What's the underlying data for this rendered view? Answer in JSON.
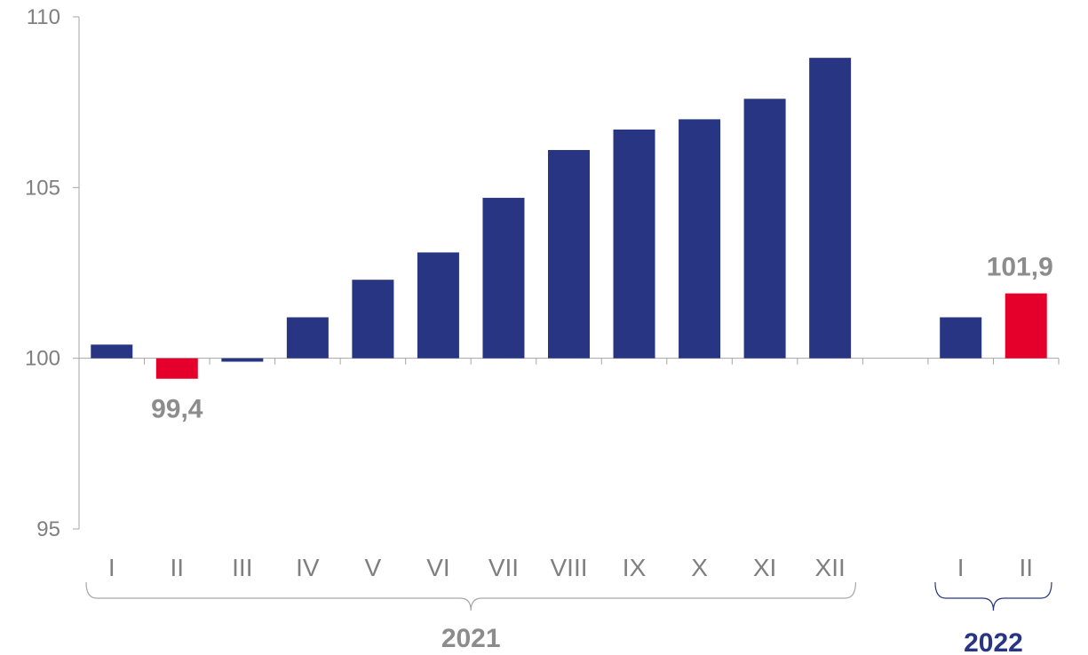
{
  "chart_data": {
    "type": "bar",
    "categories": [
      "I",
      "II",
      "III",
      "IV",
      "V",
      "VI",
      "VII",
      "VIII",
      "IX",
      "X",
      "XI",
      "XII",
      "",
      "I",
      "II"
    ],
    "values": [
      100.4,
      99.4,
      99.9,
      101.2,
      102.3,
      103.1,
      104.7,
      106.1,
      106.7,
      107.0,
      107.6,
      108.8,
      null,
      101.2,
      101.9
    ],
    "highlight_indices": [
      1,
      14
    ],
    "data_labels": [
      {
        "index": 1,
        "text": "99,4",
        "position": "below"
      },
      {
        "index": 14,
        "text": "101,9",
        "position": "above"
      }
    ],
    "groups": [
      {
        "label": "2021",
        "start": 0,
        "end": 11,
        "color": "#8c8c8c"
      },
      {
        "label": "2022",
        "start": 13,
        "end": 14,
        "color": "#283583"
      }
    ],
    "y_ticks": [
      "95",
      "100",
      "105",
      "110"
    ],
    "ylim": [
      95,
      110
    ],
    "baseline": 100,
    "title": "",
    "xlabel": "",
    "ylabel": "",
    "grid": false,
    "colors": {
      "bar": "#283583",
      "highlight": "#e4002b",
      "axis": "#a6a6a6",
      "text": "#7f7f7f"
    }
  }
}
